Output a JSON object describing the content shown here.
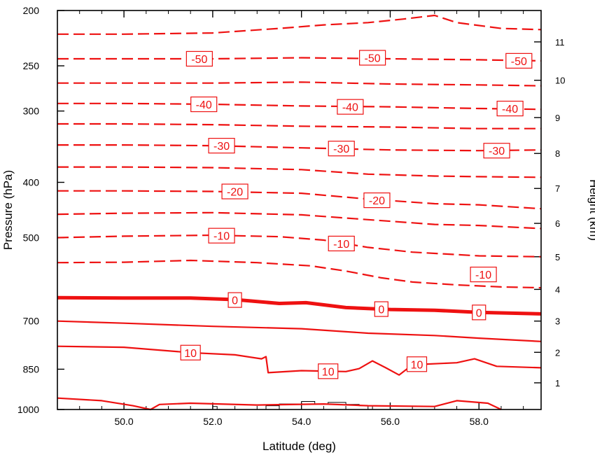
{
  "chart_data": {
    "type": "contour",
    "xlabel": "Latitude (deg)",
    "ylabel_left": "Pressure (hPa)",
    "ylabel_right": "Height (km)",
    "xlim": [
      48.5,
      59.4
    ],
    "ylim_pressure": [
      1000,
      200
    ],
    "y_scale": "log",
    "x_ticks": [
      {
        "value": 50,
        "label": "50.0"
      },
      {
        "value": 52,
        "label": "52.0"
      },
      {
        "value": 54,
        "label": "54.0"
      },
      {
        "value": 56,
        "label": "56.0"
      },
      {
        "value": 58,
        "label": "58.0"
      }
    ],
    "pressure_ticks": [
      {
        "value": 200,
        "label": "200"
      },
      {
        "value": 250,
        "label": "250"
      },
      {
        "value": 300,
        "label": "300"
      },
      {
        "value": 400,
        "label": "400"
      },
      {
        "value": 500,
        "label": "500"
      },
      {
        "value": 700,
        "label": "700"
      },
      {
        "value": 850,
        "label": "850"
      },
      {
        "value": 1000,
        "label": "1000"
      }
    ],
    "height_ticks": [
      {
        "km": 1,
        "pressure": 898,
        "label": "1"
      },
      {
        "km": 2,
        "pressure": 794,
        "label": "2"
      },
      {
        "km": 3,
        "pressure": 700,
        "label": "3"
      },
      {
        "km": 4,
        "pressure": 616,
        "label": "4"
      },
      {
        "km": 5,
        "pressure": 540,
        "label": "5"
      },
      {
        "km": 6,
        "pressure": 472,
        "label": "6"
      },
      {
        "km": 7,
        "pressure": 410,
        "label": "7"
      },
      {
        "km": 8,
        "pressure": 356,
        "label": "8"
      },
      {
        "km": 9,
        "pressure": 308,
        "label": "9"
      },
      {
        "km": 10,
        "pressure": 265,
        "label": "10"
      },
      {
        "km": 11,
        "pressure": 227,
        "label": "11"
      }
    ],
    "contour_interval": 5,
    "line_color": "#ee1111",
    "terrain_color": "#000000",
    "contours": [
      {
        "level": -55,
        "points": [
          [
            48.5,
            220
          ],
          [
            50,
            220
          ],
          [
            52,
            219
          ],
          [
            53.5,
            215
          ],
          [
            54.5,
            212
          ],
          [
            55.5,
            210
          ],
          [
            56.3,
            207
          ],
          [
            57,
            204
          ],
          [
            57.5,
            210
          ],
          [
            58.5,
            215
          ],
          [
            59.4,
            216
          ]
        ]
      },
      {
        "level": -50,
        "points": [
          [
            48.5,
            243
          ],
          [
            50,
            243
          ],
          [
            52,
            243
          ],
          [
            54,
            242
          ],
          [
            56,
            243
          ],
          [
            58,
            244
          ],
          [
            59.4,
            245
          ]
        ]
      },
      {
        "level": -45,
        "points": [
          [
            48.5,
            268
          ],
          [
            50,
            268
          ],
          [
            52,
            268
          ],
          [
            54,
            267
          ],
          [
            56,
            269
          ],
          [
            58,
            270
          ],
          [
            59.4,
            271
          ]
        ]
      },
      {
        "level": -40,
        "points": [
          [
            48.5,
            291
          ],
          [
            50,
            291
          ],
          [
            52,
            292
          ],
          [
            54,
            294
          ],
          [
            56,
            295
          ],
          [
            58,
            297
          ],
          [
            59.4,
            298
          ]
        ]
      },
      {
        "level": -35,
        "points": [
          [
            48.5,
            316
          ],
          [
            50,
            316
          ],
          [
            52,
            317
          ],
          [
            54,
            319
          ],
          [
            56,
            320
          ],
          [
            58,
            322
          ],
          [
            59.4,
            322
          ]
        ]
      },
      {
        "level": -30,
        "points": [
          [
            48.5,
            344
          ],
          [
            50,
            344
          ],
          [
            52,
            345
          ],
          [
            54,
            348
          ],
          [
            56,
            351
          ],
          [
            58,
            352
          ],
          [
            59.4,
            351
          ]
        ]
      },
      {
        "level": -25,
        "points": [
          [
            48.5,
            376
          ],
          [
            50,
            376
          ],
          [
            52,
            377
          ],
          [
            54,
            380
          ],
          [
            55.5,
            387
          ],
          [
            57,
            390
          ],
          [
            58,
            391
          ],
          [
            59.4,
            392
          ]
        ]
      },
      {
        "level": -20,
        "points": [
          [
            48.5,
            414
          ],
          [
            50,
            414
          ],
          [
            52,
            415
          ],
          [
            54,
            418
          ],
          [
            55.5,
            428
          ],
          [
            57,
            436
          ],
          [
            58,
            438
          ],
          [
            59.4,
            445
          ]
        ]
      },
      {
        "level": -15,
        "points": [
          [
            48.5,
            455
          ],
          [
            50,
            453
          ],
          [
            52,
            452
          ],
          [
            54,
            456
          ],
          [
            55.5,
            465
          ],
          [
            57,
            474
          ],
          [
            58,
            476
          ],
          [
            59.4,
            482
          ]
        ]
      },
      {
        "level": -10,
        "points": [
          [
            48.5,
            500
          ],
          [
            50,
            497
          ],
          [
            52,
            495
          ],
          [
            53.5,
            498
          ],
          [
            54.5,
            505
          ],
          [
            55.5,
            520
          ],
          [
            56.5,
            530
          ],
          [
            58,
            538
          ],
          [
            59.4,
            540
          ]
        ]
      },
      {
        "level": -5,
        "points": [
          [
            48.5,
            553
          ],
          [
            50,
            552
          ],
          [
            51.5,
            548
          ],
          [
            53,
            553
          ],
          [
            54.2,
            560
          ],
          [
            55,
            572
          ],
          [
            55.8,
            588
          ],
          [
            56.5,
            598
          ],
          [
            57.5,
            605
          ],
          [
            58.5,
            610
          ],
          [
            59.4,
            612
          ]
        ]
      },
      {
        "level": 0,
        "bold": true,
        "points": [
          [
            48.5,
            637
          ],
          [
            50,
            638
          ],
          [
            51.5,
            638
          ],
          [
            52.5,
            642
          ],
          [
            53.5,
            652
          ],
          [
            54.1,
            650
          ],
          [
            55,
            663
          ],
          [
            56,
            668
          ],
          [
            57,
            670
          ],
          [
            58,
            676
          ],
          [
            59.4,
            680
          ]
        ]
      },
      {
        "level": 5,
        "points": [
          [
            48.5,
            700
          ],
          [
            50,
            706
          ],
          [
            52,
            715
          ],
          [
            54,
            722
          ],
          [
            55.5,
            735
          ],
          [
            57,
            742
          ],
          [
            58,
            750
          ],
          [
            59.4,
            760
          ]
        ]
      },
      {
        "level": 10,
        "points": [
          [
            48.5,
            775
          ],
          [
            50,
            778
          ],
          [
            51.5,
            795
          ],
          [
            52.5,
            802
          ],
          [
            53.1,
            815
          ],
          [
            53.2,
            808
          ],
          [
            53.25,
            862
          ],
          [
            54,
            855
          ],
          [
            55,
            858
          ],
          [
            55.3,
            848
          ],
          [
            55.6,
            822
          ],
          [
            55.9,
            845
          ],
          [
            56.2,
            870
          ],
          [
            56.5,
            835
          ],
          [
            57.5,
            828
          ],
          [
            57.9,
            815
          ],
          [
            58.4,
            840
          ],
          [
            59.4,
            845
          ]
        ]
      },
      {
        "level": 15,
        "points": [
          [
            48.5,
            955
          ],
          [
            49.5,
            965
          ],
          [
            50.2,
            985
          ],
          [
            50.6,
            1000
          ],
          [
            50.8,
            980
          ],
          [
            51.5,
            975
          ],
          [
            53,
            982
          ],
          [
            54.5,
            978
          ],
          [
            55.5,
            985
          ],
          [
            57,
            988
          ],
          [
            57.5,
            965
          ],
          [
            58.2,
            975
          ],
          [
            58.5,
            1000
          ]
        ]
      }
    ],
    "contour_labels": [
      {
        "level": -50,
        "text": "-50",
        "at": [
          51.7,
          243
        ]
      },
      {
        "level": -50,
        "text": "-50",
        "at": [
          55.6,
          242
        ]
      },
      {
        "level": -50,
        "text": "-50",
        "at": [
          58.9,
          245
        ]
      },
      {
        "level": -40,
        "text": "-40",
        "at": [
          51.8,
          292
        ]
      },
      {
        "level": -40,
        "text": "-40",
        "at": [
          55.1,
          295
        ]
      },
      {
        "level": -40,
        "text": "-40",
        "at": [
          58.7,
          297
        ]
      },
      {
        "level": -30,
        "text": "-30",
        "at": [
          52.2,
          345
        ]
      },
      {
        "level": -30,
        "text": "-30",
        "at": [
          54.9,
          349
        ]
      },
      {
        "level": -30,
        "text": "-30",
        "at": [
          58.4,
          352
        ]
      },
      {
        "level": -20,
        "text": "-20",
        "at": [
          52.5,
          415
        ]
      },
      {
        "level": -20,
        "text": "-20",
        "at": [
          55.7,
          430
        ]
      },
      {
        "level": -10,
        "text": "-10",
        "at": [
          52.2,
          496
        ]
      },
      {
        "level": -10,
        "text": "-10",
        "at": [
          54.9,
          512
        ]
      },
      {
        "level": -10,
        "text": "-10",
        "at": [
          58.1,
          580
        ]
      },
      {
        "level": 0,
        "text": "0",
        "at": [
          52.5,
          643
        ]
      },
      {
        "level": 0,
        "text": "0",
        "at": [
          55.8,
          667
        ]
      },
      {
        "level": 0,
        "text": "0",
        "at": [
          58.0,
          676
        ]
      },
      {
        "level": 10,
        "text": "10",
        "at": [
          51.5,
          795
        ]
      },
      {
        "level": 10,
        "text": "10",
        "at": [
          54.6,
          857
        ]
      },
      {
        "level": 10,
        "text": "10",
        "at": [
          56.6,
          833
        ]
      }
    ],
    "terrain": {
      "points": [
        [
          52.0,
          1000
        ],
        [
          52.0,
          988
        ],
        [
          52.1,
          988
        ],
        [
          52.1,
          1000
        ],
        [
          53.2,
          1000
        ],
        [
          53.2,
          985
        ],
        [
          53.5,
          985
        ],
        [
          53.5,
          978
        ],
        [
          54.0,
          978
        ],
        [
          54.0,
          968
        ],
        [
          54.3,
          968
        ],
        [
          54.3,
          978
        ],
        [
          54.6,
          978
        ],
        [
          54.6,
          972
        ],
        [
          55.0,
          972
        ],
        [
          55.0,
          980
        ],
        [
          55.3,
          980
        ],
        [
          55.3,
          985
        ],
        [
          55.6,
          985
        ],
        [
          55.6,
          1000
        ]
      ]
    }
  }
}
